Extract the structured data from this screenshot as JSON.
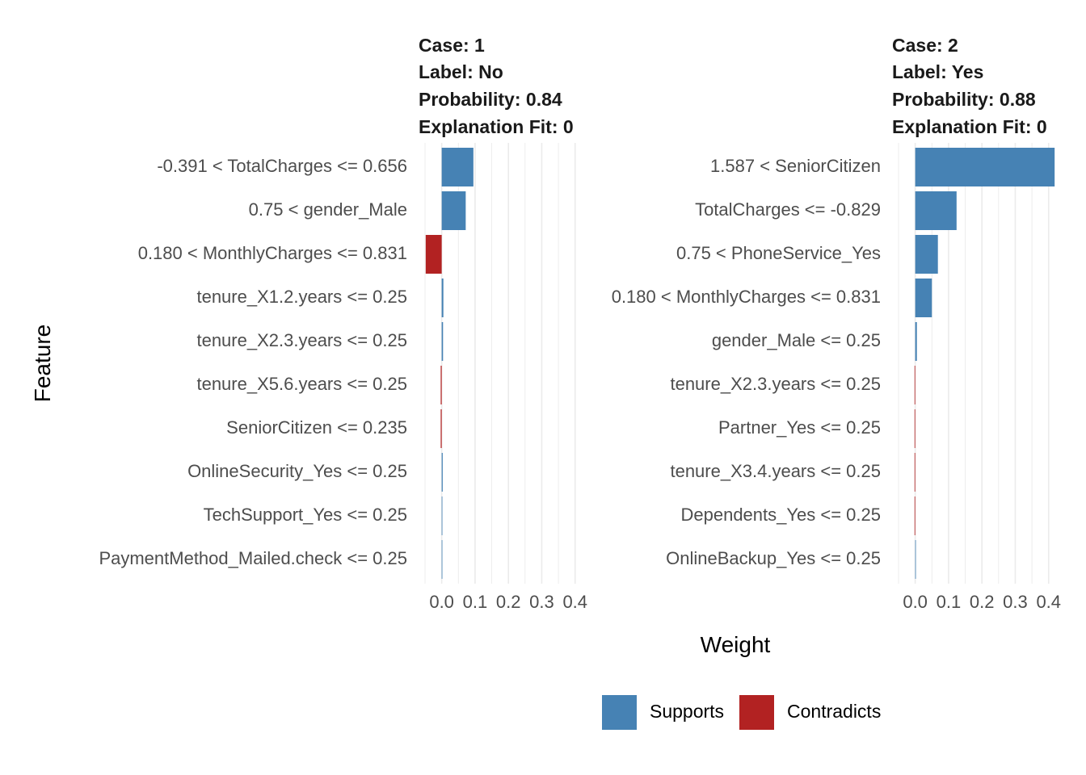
{
  "colors": {
    "supports": "#4682B4",
    "contradicts": "#B22222",
    "grid": "#EBEBEB"
  },
  "chart_data": {
    "type": "bar",
    "orientation": "horizontal",
    "xlabel": "Weight",
    "ylabel": "Feature",
    "xlim": [
      -0.05,
      0.42
    ],
    "xticks": [
      0.0,
      0.1,
      0.2,
      0.3,
      0.4
    ],
    "xtick_labels": [
      "0.0",
      "0.1",
      "0.2",
      "0.3",
      "0.4"
    ],
    "grid": true,
    "legend": {
      "position": "bottom",
      "entries": [
        {
          "key": "supports",
          "label": "Supports"
        },
        {
          "key": "contradicts",
          "label": "Contradicts"
        }
      ]
    },
    "facets": [
      {
        "case": "Case: 1",
        "label": "Label: No",
        "probability": "Probability: 0.84",
        "fit": "Explanation Fit: 0",
        "bars": [
          {
            "feature": "-0.391 < TotalCharges <= 0.656",
            "weight": 0.095,
            "type": "supports"
          },
          {
            "feature": "0.75 < gender_Male",
            "weight": 0.072,
            "type": "supports"
          },
          {
            "feature": "0.180 < MonthlyCharges <= 0.831",
            "weight": -0.048,
            "type": "contradicts"
          },
          {
            "feature": "tenure_X1.2.years <= 0.25",
            "weight": 0.005,
            "type": "supports"
          },
          {
            "feature": "tenure_X2.3.years <= 0.25",
            "weight": 0.004,
            "type": "supports"
          },
          {
            "feature": "tenure_X5.6.years <= 0.25",
            "weight": -0.003,
            "type": "contradicts"
          },
          {
            "feature": "SeniorCitizen <= 0.235",
            "weight": -0.003,
            "type": "contradicts"
          },
          {
            "feature": "OnlineSecurity_Yes <= 0.25",
            "weight": 0.003,
            "type": "supports"
          },
          {
            "feature": "TechSupport_Yes <= 0.25",
            "weight": 0.002,
            "type": "supports"
          },
          {
            "feature": "PaymentMethod_Mailed.check <= 0.25",
            "weight": 0.0005,
            "type": "supports"
          }
        ]
      },
      {
        "case": "Case: 2",
        "label": "Label: Yes",
        "probability": "Probability: 0.88",
        "fit": "Explanation Fit: 0",
        "bars": [
          {
            "feature": "1.587 < SeniorCitizen",
            "weight": 0.418,
            "type": "supports"
          },
          {
            "feature": "TotalCharges <= -0.829",
            "weight": 0.124,
            "type": "supports"
          },
          {
            "feature": "0.75 < PhoneService_Yes",
            "weight": 0.068,
            "type": "supports"
          },
          {
            "feature": "0.180 < MonthlyCharges <= 0.831",
            "weight": 0.05,
            "type": "supports"
          },
          {
            "feature": "gender_Male <= 0.25",
            "weight": 0.005,
            "type": "supports"
          },
          {
            "feature": "tenure_X2.3.years <= 0.25",
            "weight": -0.002,
            "type": "contradicts"
          },
          {
            "feature": "Partner_Yes <= 0.25",
            "weight": -0.002,
            "type": "contradicts"
          },
          {
            "feature": "tenure_X3.4.years <= 0.25",
            "weight": -0.002,
            "type": "contradicts"
          },
          {
            "feature": "Dependents_Yes <= 0.25",
            "weight": -0.002,
            "type": "contradicts"
          },
          {
            "feature": "OnlineBackup_Yes <= 0.25",
            "weight": 0.002,
            "type": "supports"
          }
        ]
      }
    ]
  }
}
